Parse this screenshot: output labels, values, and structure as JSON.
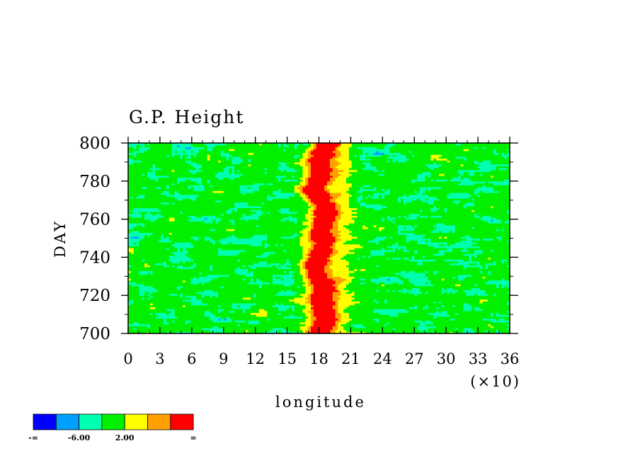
{
  "chart_data": {
    "type": "heatmap",
    "title": "G.P. Height",
    "xlabel": "longitude",
    "ylabel": "DAY",
    "x_multiplier_label": "(×10)",
    "xlim": [
      0,
      36
    ],
    "ylim": [
      700,
      800
    ],
    "x_ticks": [
      "0",
      "3",
      "6",
      "9",
      "12",
      "15",
      "18",
      "21",
      "24",
      "27",
      "30",
      "33",
      "36"
    ],
    "y_ticks": [
      "700",
      "720",
      "740",
      "760",
      "780",
      "800"
    ],
    "grid": false,
    "colorbar": {
      "colors": [
        "#0000ff",
        "#00a0ff",
        "#00ffb0",
        "#00f000",
        "#ffff00",
        "#ffa000",
        "#ff0000"
      ],
      "labels": [
        "-∞",
        "-6.00",
        "2.00",
        "∞"
      ]
    },
    "field_description": {
      "background_level": "green",
      "ridge_center_x": 18,
      "ridge_levels_center_to_edge": [
        "red",
        "orange",
        "yellow"
      ]
    }
  }
}
